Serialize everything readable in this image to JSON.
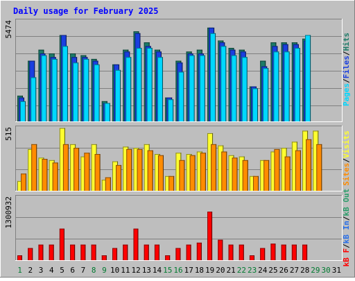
{
  "title": "Daily usage for February 2025",
  "colors": {
    "background": "#c0c0c0",
    "plot_background": "#bebebe",
    "grid": "#808080",
    "border_light": "#ffffff",
    "border_dark": "#808080",
    "title_text": "#0000ff",
    "hits": "#1d7b68",
    "files": "#1a3fe0",
    "pages": "#00d8ff",
    "visits": "#ffff30",
    "sites": "#ff8c00",
    "kbin": "#2a70e8",
    "kbout": "#2a9d6a",
    "kbf": "#ff0000",
    "day_weekday": "#000000",
    "day_weekend": "#007a30"
  },
  "chart_data": [
    {
      "type": "bar",
      "panel": "top",
      "ymax_label": "5474",
      "ylim": [
        0,
        5474
      ],
      "grid": true,
      "categories": [
        "1",
        "2",
        "3",
        "4",
        "5",
        "6",
        "7",
        "8",
        "9",
        "10",
        "11",
        "12",
        "13",
        "14",
        "15",
        "16",
        "17",
        "18",
        "19",
        "20",
        "21",
        "22",
        "23",
        "24",
        "25",
        "26",
        "27",
        "28",
        "29",
        "30",
        "31"
      ],
      "legend": [
        {
          "key": "pages",
          "text": "Pages"
        },
        {
          "key": "files",
          "text": "Files"
        },
        {
          "key": "hits",
          "text": "Hits"
        }
      ],
      "separator": "/",
      "series": [
        {
          "name": "Hits",
          "color_key": "hits",
          "values": [
            1400,
            3300,
            3900,
            3700,
            4700,
            3700,
            3600,
            3400,
            1100,
            3100,
            3900,
            4900,
            4300,
            3900,
            1300,
            3300,
            3800,
            3900,
            5100,
            4400,
            4000,
            3900,
            1900,
            3300,
            4300,
            4300,
            4300,
            4500,
            0,
            0,
            0
          ]
        },
        {
          "name": "Files",
          "color_key": "files",
          "values": [
            1300,
            3300,
            3700,
            3500,
            4700,
            3500,
            3500,
            3300,
            1000,
            3100,
            3800,
            4800,
            4100,
            3800,
            1300,
            3200,
            3700,
            3700,
            5100,
            4300,
            3900,
            3800,
            1900,
            3000,
            4100,
            4200,
            4200,
            4400,
            0,
            0,
            0
          ]
        },
        {
          "name": "Pages",
          "color_key": "pages",
          "values": [
            1100,
            2400,
            3600,
            3400,
            4100,
            3200,
            3400,
            3100,
            1000,
            2800,
            3500,
            4000,
            4000,
            3500,
            1200,
            2700,
            3600,
            3600,
            4800,
            4100,
            3600,
            3500,
            1800,
            2900,
            3800,
            3800,
            4000,
            4700,
            0,
            0,
            0
          ]
        }
      ]
    },
    {
      "type": "bar",
      "panel": "middle",
      "ymax_label": "515",
      "ylim": [
        0,
        515
      ],
      "grid": true,
      "categories": [
        "1",
        "2",
        "3",
        "4",
        "5",
        "6",
        "7",
        "8",
        "9",
        "10",
        "11",
        "12",
        "13",
        "14",
        "15",
        "16",
        "17",
        "18",
        "19",
        "20",
        "21",
        "22",
        "23",
        "24",
        "25",
        "26",
        "27",
        "28",
        "29",
        "30",
        "31"
      ],
      "legend": [
        {
          "key": "sites",
          "text": "Sites"
        },
        {
          "key": "visits",
          "text": "Visits"
        }
      ],
      "separator": "/",
      "series": [
        {
          "name": "Visits",
          "color_key": "visits",
          "values": [
            80,
            340,
            270,
            250,
            512,
            380,
            280,
            380,
            90,
            240,
            360,
            350,
            380,
            300,
            120,
            310,
            300,
            320,
            470,
            370,
            290,
            280,
            120,
            250,
            320,
            350,
            400,
            490,
            490,
            0,
            0
          ]
        },
        {
          "name": "Sites",
          "color_key": "sites",
          "values": [
            140,
            380,
            260,
            230,
            380,
            350,
            310,
            300,
            110,
            210,
            340,
            340,
            330,
            290,
            120,
            250,
            290,
            310,
            380,
            320,
            270,
            250,
            120,
            250,
            340,
            280,
            330,
            420,
            380,
            0,
            0
          ]
        }
      ]
    },
    {
      "type": "bar",
      "panel": "bottom",
      "ymax_label": "1300932",
      "ylim": [
        0,
        1300932
      ],
      "grid": true,
      "categories": [
        "1",
        "2",
        "3",
        "4",
        "5",
        "6",
        "7",
        "8",
        "9",
        "10",
        "11",
        "12",
        "13",
        "14",
        "15",
        "16",
        "17",
        "18",
        "19",
        "20",
        "21",
        "22",
        "23",
        "24",
        "25",
        "26",
        "27",
        "28",
        "29",
        "30",
        "31"
      ],
      "legend": [
        {
          "key": "kbf",
          "text": "kB F"
        },
        {
          "key": "kbin",
          "text": "kB In"
        },
        {
          "key": "kbout",
          "text": "kB Out"
        }
      ],
      "separator": "/",
      "series": [
        {
          "name": "kB F",
          "color_key": "kbf",
          "values": [
            100000,
            250000,
            320000,
            320000,
            650000,
            320000,
            320000,
            320000,
            100000,
            250000,
            320000,
            650000,
            320000,
            320000,
            100000,
            250000,
            320000,
            360000,
            1000000,
            420000,
            320000,
            320000,
            100000,
            250000,
            340000,
            320000,
            320000,
            320000,
            0,
            0,
            0
          ]
        }
      ]
    }
  ],
  "day_labels": [
    {
      "text": "1",
      "weekend": true
    },
    {
      "text": "2",
      "weekend": false
    },
    {
      "text": "3",
      "weekend": false
    },
    {
      "text": "4",
      "weekend": false
    },
    {
      "text": "5",
      "weekend": false
    },
    {
      "text": "6",
      "weekend": false
    },
    {
      "text": "7",
      "weekend": false
    },
    {
      "text": "8",
      "weekend": true
    },
    {
      "text": "9",
      "weekend": true
    },
    {
      "text": "10",
      "weekend": false
    },
    {
      "text": "11",
      "weekend": false
    },
    {
      "text": "12",
      "weekend": false
    },
    {
      "text": "13",
      "weekend": false
    },
    {
      "text": "14",
      "weekend": false
    },
    {
      "text": "15",
      "weekend": true
    },
    {
      "text": "16",
      "weekend": true
    },
    {
      "text": "17",
      "weekend": false
    },
    {
      "text": "18",
      "weekend": false
    },
    {
      "text": "19",
      "weekend": false
    },
    {
      "text": "20",
      "weekend": false
    },
    {
      "text": "21",
      "weekend": false
    },
    {
      "text": "22",
      "weekend": true
    },
    {
      "text": "23",
      "weekend": true
    },
    {
      "text": "24",
      "weekend": false
    },
    {
      "text": "25",
      "weekend": false
    },
    {
      "text": "26",
      "weekend": false
    },
    {
      "text": "27",
      "weekend": false
    },
    {
      "text": "28",
      "weekend": false
    },
    {
      "text": "29",
      "weekend": true
    },
    {
      "text": "30",
      "weekend": true
    },
    {
      "text": "31",
      "weekend": false
    }
  ]
}
